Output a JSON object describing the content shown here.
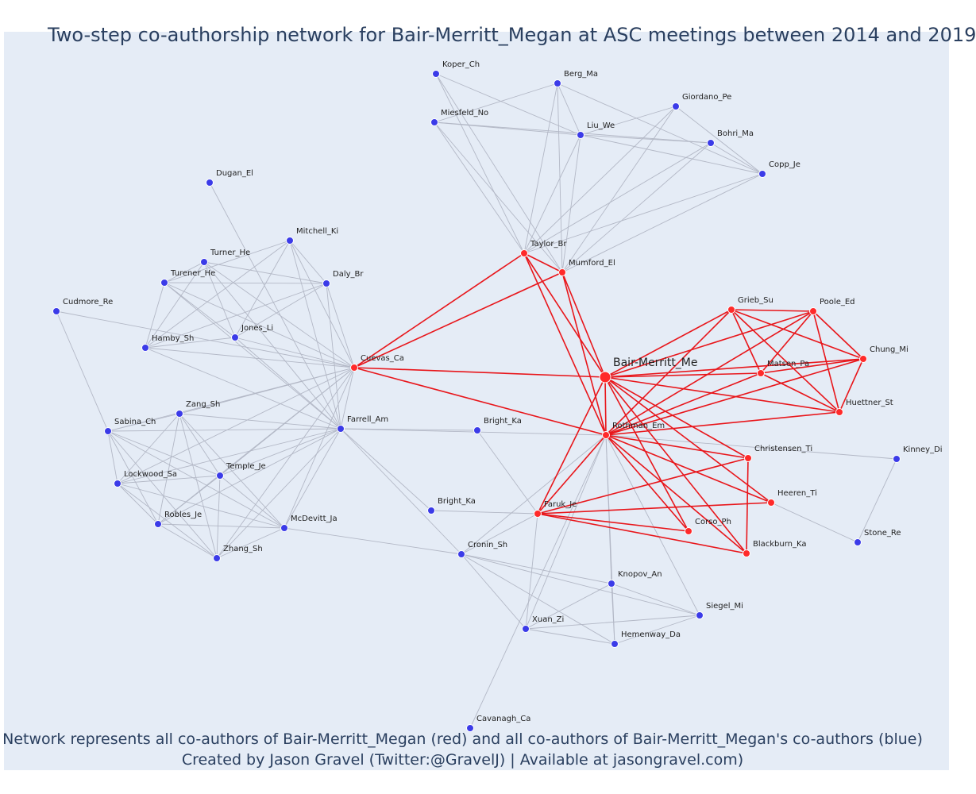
{
  "title": "Two-step co-authorship network for Bair-Merritt_Megan at ASC meetings between 2014 and 2019",
  "caption_line1": "Network represents all co-authors of Bair-Merritt_Megan (red) and all co-authors of Bair-Merritt_Megan's co-authors (blue)",
  "caption_line2": "Created by Jason Gravel (Twitter:@GravelJ) | Available at jasongravel.com)",
  "colors": {
    "background": "#e5ecf6",
    "red_node": "#ff2a2a",
    "blue_node": "#3b3be8",
    "red_edge": "#e8161b",
    "gray_edge": "#b3b8c6"
  },
  "ego": "Bair-Merritt_Me",
  "nodes": [
    {
      "id": "Bair-Merritt_Me",
      "group": "ego"
    },
    {
      "id": "Rothman_Em",
      "group": "red"
    },
    {
      "id": "Taylor_Br",
      "group": "red"
    },
    {
      "id": "Mumford_El",
      "group": "red"
    },
    {
      "id": "Cuevas_Ca",
      "group": "red"
    },
    {
      "id": "Grieb_Su",
      "group": "red"
    },
    {
      "id": "Poole_Ed",
      "group": "red"
    },
    {
      "id": "Chung_Mi",
      "group": "red"
    },
    {
      "id": "Matsen_Pa",
      "group": "red"
    },
    {
      "id": "Huettner_St",
      "group": "red"
    },
    {
      "id": "Christensen_Ti",
      "group": "red"
    },
    {
      "id": "Heeren_Ti",
      "group": "red"
    },
    {
      "id": "Faruk_Je",
      "group": "red"
    },
    {
      "id": "Corso_Ph",
      "group": "red"
    },
    {
      "id": "Blackburn_Ka",
      "group": "red"
    },
    {
      "id": "Koper_Ch",
      "group": "blue"
    },
    {
      "id": "Berg_Ma",
      "group": "blue"
    },
    {
      "id": "Giordano_Pe",
      "group": "blue"
    },
    {
      "id": "Miesfeld_No",
      "group": "blue"
    },
    {
      "id": "Liu_We",
      "group": "blue"
    },
    {
      "id": "Bohri_Ma",
      "group": "blue"
    },
    {
      "id": "Copp_Je",
      "group": "blue"
    },
    {
      "id": "Dugan_El",
      "group": "blue"
    },
    {
      "id": "Mitchell_Ki",
      "group": "blue"
    },
    {
      "id": "Turner_He",
      "group": "blue"
    },
    {
      "id": "Turener_He",
      "group": "blue"
    },
    {
      "id": "Daly_Br",
      "group": "blue"
    },
    {
      "id": "Cudmore_Re",
      "group": "blue"
    },
    {
      "id": "Jones_Li",
      "group": "blue"
    },
    {
      "id": "Hamby_Sh",
      "group": "blue"
    },
    {
      "id": "Zang_Sh",
      "group": "blue"
    },
    {
      "id": "Farrell_Am",
      "group": "blue"
    },
    {
      "id": "Sabina_Ch",
      "group": "blue"
    },
    {
      "id": "Bright_Ka_1",
      "label": "Bright_Ka",
      "group": "blue"
    },
    {
      "id": "Temple_Je",
      "group": "blue"
    },
    {
      "id": "Lockwood_Sa",
      "group": "blue"
    },
    {
      "id": "Bright_Ka_2",
      "label": "Bright_Ka",
      "group": "blue"
    },
    {
      "id": "Robles_Je",
      "group": "blue"
    },
    {
      "id": "McDevitt_Ja",
      "group": "blue"
    },
    {
      "id": "Zhang_Sh",
      "group": "blue"
    },
    {
      "id": "Cronin_Sh",
      "group": "blue"
    },
    {
      "id": "Kinney_Di",
      "group": "blue"
    },
    {
      "id": "Stone_Re",
      "group": "blue"
    },
    {
      "id": "Knopov_An",
      "group": "blue"
    },
    {
      "id": "Siegel_Mi",
      "group": "blue"
    },
    {
      "id": "Xuan_Zi",
      "group": "blue"
    },
    {
      "id": "Hemenway_Da",
      "group": "blue"
    },
    {
      "id": "Cavanagh_Ca",
      "group": "blue"
    }
  ],
  "red_edges": [
    [
      "Bair-Merritt_Me",
      "Rothman_Em"
    ],
    [
      "Bair-Merritt_Me",
      "Taylor_Br"
    ],
    [
      "Bair-Merritt_Me",
      "Mumford_El"
    ],
    [
      "Bair-Merritt_Me",
      "Cuevas_Ca"
    ],
    [
      "Bair-Merritt_Me",
      "Grieb_Su"
    ],
    [
      "Bair-Merritt_Me",
      "Poole_Ed"
    ],
    [
      "Bair-Merritt_Me",
      "Chung_Mi"
    ],
    [
      "Bair-Merritt_Me",
      "Matsen_Pa"
    ],
    [
      "Bair-Merritt_Me",
      "Huettner_St"
    ],
    [
      "Bair-Merritt_Me",
      "Christensen_Ti"
    ],
    [
      "Bair-Merritt_Me",
      "Heeren_Ti"
    ],
    [
      "Bair-Merritt_Me",
      "Faruk_Je"
    ],
    [
      "Bair-Merritt_Me",
      "Corso_Ph"
    ],
    [
      "Bair-Merritt_Me",
      "Blackburn_Ka"
    ],
    [
      "Rothman_Em",
      "Taylor_Br"
    ],
    [
      "Rothman_Em",
      "Mumford_El"
    ],
    [
      "Rothman_Em",
      "Cuevas_Ca"
    ],
    [
      "Rothman_Em",
      "Grieb_Su"
    ],
    [
      "Rothman_Em",
      "Poole_Ed"
    ],
    [
      "Rothman_Em",
      "Chung_Mi"
    ],
    [
      "Rothman_Em",
      "Matsen_Pa"
    ],
    [
      "Rothman_Em",
      "Huettner_St"
    ],
    [
      "Rothman_Em",
      "Christensen_Ti"
    ],
    [
      "Rothman_Em",
      "Heeren_Ti"
    ],
    [
      "Rothman_Em",
      "Faruk_Je"
    ],
    [
      "Rothman_Em",
      "Corso_Ph"
    ],
    [
      "Rothman_Em",
      "Blackburn_Ka"
    ],
    [
      "Taylor_Br",
      "Mumford_El"
    ],
    [
      "Taylor_Br",
      "Cuevas_Ca"
    ],
    [
      "Mumford_El",
      "Cuevas_Ca"
    ],
    [
      "Grieb_Su",
      "Poole_Ed"
    ],
    [
      "Grieb_Su",
      "Chung_Mi"
    ],
    [
      "Grieb_Su",
      "Matsen_Pa"
    ],
    [
      "Grieb_Su",
      "Huettner_St"
    ],
    [
      "Poole_Ed",
      "Chung_Mi"
    ],
    [
      "Poole_Ed",
      "Matsen_Pa"
    ],
    [
      "Poole_Ed",
      "Huettner_St"
    ],
    [
      "Chung_Mi",
      "Matsen_Pa"
    ],
    [
      "Chung_Mi",
      "Huettner_St"
    ],
    [
      "Matsen_Pa",
      "Huettner_St"
    ],
    [
      "Faruk_Je",
      "Christensen_Ti"
    ],
    [
      "Faruk_Je",
      "Heeren_Ti"
    ],
    [
      "Faruk_Je",
      "Corso_Ph"
    ],
    [
      "Faruk_Je",
      "Blackburn_Ka"
    ],
    [
      "Christensen_Ti",
      "Blackburn_Ka"
    ]
  ],
  "gray_edges": [
    [
      "Taylor_Br",
      "Koper_Ch"
    ],
    [
      "Taylor_Br",
      "Berg_Ma"
    ],
    [
      "Taylor_Br",
      "Miesfeld_No"
    ],
    [
      "Taylor_Br",
      "Liu_We"
    ],
    [
      "Taylor_Br",
      "Giordano_Pe"
    ],
    [
      "Taylor_Br",
      "Bohri_Ma"
    ],
    [
      "Taylor_Br",
      "Copp_Je"
    ],
    [
      "Mumford_El",
      "Koper_Ch"
    ],
    [
      "Mumford_El",
      "Berg_Ma"
    ],
    [
      "Mumford_El",
      "Miesfeld_No"
    ],
    [
      "Mumford_El",
      "Liu_We"
    ],
    [
      "Mumford_El",
      "Giordano_Pe"
    ],
    [
      "Mumford_El",
      "Bohri_Ma"
    ],
    [
      "Mumford_El",
      "Copp_Je"
    ],
    [
      "Koper_Ch",
      "Liu_We"
    ],
    [
      "Miesfeld_No",
      "Berg_Ma"
    ],
    [
      "Miesfeld_No",
      "Liu_We"
    ],
    [
      "Miesfeld_No",
      "Bohri_Ma"
    ],
    [
      "Berg_Ma",
      "Liu_We"
    ],
    [
      "Berg_Ma",
      "Copp_Je"
    ],
    [
      "Giordano_Pe",
      "Liu_We"
    ],
    [
      "Giordano_Pe",
      "Copp_Je"
    ],
    [
      "Liu_We",
      "Bohri_Ma"
    ],
    [
      "Liu_We",
      "Copp_Je"
    ],
    [
      "Bohri_Ma",
      "Copp_Je"
    ],
    [
      "Cuevas_Ca",
      "Mitchell_Ki"
    ],
    [
      "Cuevas_Ca",
      "Turner_He"
    ],
    [
      "Cuevas_Ca",
      "Turener_He"
    ],
    [
      "Cuevas_Ca",
      "Daly_Br"
    ],
    [
      "Cuevas_Ca",
      "Jones_Li"
    ],
    [
      "Cuevas_Ca",
      "Hamby_Sh"
    ],
    [
      "Cuevas_Ca",
      "Cudmore_Re"
    ],
    [
      "Cuevas_Ca",
      "Zang_Sh"
    ],
    [
      "Cuevas_Ca",
      "Sabina_Ch"
    ],
    [
      "Cuevas_Ca",
      "Temple_Je"
    ],
    [
      "Cuevas_Ca",
      "Lockwood_Sa"
    ],
    [
      "Cuevas_Ca",
      "Robles_Je"
    ],
    [
      "Cuevas_Ca",
      "McDevitt_Ja"
    ],
    [
      "Cuevas_Ca",
      "Zhang_Sh"
    ],
    [
      "Cuevas_Ca",
      "Farrell_Am"
    ],
    [
      "Farrell_Am",
      "Dugan_El"
    ],
    [
      "Farrell_Am",
      "Mitchell_Ki"
    ],
    [
      "Farrell_Am",
      "Turner_He"
    ],
    [
      "Farrell_Am",
      "Turener_He"
    ],
    [
      "Farrell_Am",
      "Daly_Br"
    ],
    [
      "Farrell_Am",
      "Jones_Li"
    ],
    [
      "Farrell_Am",
      "Hamby_Sh"
    ],
    [
      "Farrell_Am",
      "Zang_Sh"
    ],
    [
      "Farrell_Am",
      "Sabina_Ch"
    ],
    [
      "Farrell_Am",
      "Temple_Je"
    ],
    [
      "Farrell_Am",
      "Lockwood_Sa"
    ],
    [
      "Farrell_Am",
      "Robles_Je"
    ],
    [
      "Farrell_Am",
      "McDevitt_Ja"
    ],
    [
      "Farrell_Am",
      "Zhang_Sh"
    ],
    [
      "Farrell_Am",
      "Bright_Ka_1"
    ],
    [
      "Farrell_Am",
      "Bright_Ka_2"
    ],
    [
      "Farrell_Am",
      "Rothman_Em"
    ],
    [
      "Farrell_Am",
      "Cronin_Sh"
    ],
    [
      "Mitchell_Ki",
      "Turener_He"
    ],
    [
      "Mitchell_Ki",
      "Hamby_Sh"
    ],
    [
      "Mitchell_Ki",
      "Jones_Li"
    ],
    [
      "Mitchell_Ki",
      "Daly_Br"
    ],
    [
      "Turner_He",
      "Jones_Li"
    ],
    [
      "Turner_He",
      "Daly_Br"
    ],
    [
      "Turner_He",
      "Hamby_Sh"
    ],
    [
      "Turner_He",
      "Turener_He"
    ],
    [
      "Turener_He",
      "Daly_Br"
    ],
    [
      "Turener_He",
      "Jones_Li"
    ],
    [
      "Turener_He",
      "Hamby_Sh"
    ],
    [
      "Daly_Br",
      "Jones_Li"
    ],
    [
      "Daly_Br",
      "Hamby_Sh"
    ],
    [
      "Jones_Li",
      "Hamby_Sh"
    ],
    [
      "Cudmore_Re",
      "Sabina_Ch"
    ],
    [
      "Zang_Sh",
      "Sabina_Ch"
    ],
    [
      "Zang_Sh",
      "Lockwood_Sa"
    ],
    [
      "Zang_Sh",
      "Temple_Je"
    ],
    [
      "Zang_Sh",
      "Robles_Je"
    ],
    [
      "Zang_Sh",
      "McDevitt_Ja"
    ],
    [
      "Zang_Sh",
      "Zhang_Sh"
    ],
    [
      "Sabina_Ch",
      "Lockwood_Sa"
    ],
    [
      "Sabina_Ch",
      "Temple_Je"
    ],
    [
      "Sabina_Ch",
      "Robles_Je"
    ],
    [
      "Sabina_Ch",
      "McDevitt_Ja"
    ],
    [
      "Sabina_Ch",
      "Zhang_Sh"
    ],
    [
      "Temple_Je",
      "Lockwood_Sa"
    ],
    [
      "Temple_Je",
      "Robles_Je"
    ],
    [
      "Temple_Je",
      "McDevitt_Ja"
    ],
    [
      "Temple_Je",
      "Zhang_Sh"
    ],
    [
      "Lockwood_Sa",
      "Robles_Je"
    ],
    [
      "Lockwood_Sa",
      "McDevitt_Ja"
    ],
    [
      "Lockwood_Sa",
      "Zhang_Sh"
    ],
    [
      "Robles_Je",
      "McDevitt_Ja"
    ],
    [
      "Robles_Je",
      "Zhang_Sh"
    ],
    [
      "McDevitt_Ja",
      "Zhang_Sh"
    ],
    [
      "McDevitt_Ja",
      "Cronin_Sh"
    ],
    [
      "Bright_Ka_1",
      "Faruk_Je"
    ],
    [
      "Bright_Ka_2",
      "Faruk_Je"
    ],
    [
      "Rothman_Em",
      "Knopov_An"
    ],
    [
      "Rothman_Em",
      "Hemenway_Da"
    ],
    [
      "Rothman_Em",
      "Siegel_Mi"
    ],
    [
      "Rothman_Em",
      "Xuan_Zi"
    ],
    [
      "Rothman_Em",
      "Cavanagh_Ca"
    ],
    [
      "Rothman_Em",
      "Cronin_Sh"
    ],
    [
      "Rothman_Em",
      "Kinney_Di"
    ],
    [
      "Heeren_Ti",
      "Stone_Re"
    ],
    [
      "Kinney_Di",
      "Stone_Re"
    ],
    [
      "Cronin_Sh",
      "Knopov_An"
    ],
    [
      "Cronin_Sh",
      "Siegel_Mi"
    ],
    [
      "Cronin_Sh",
      "Xuan_Zi"
    ],
    [
      "Cronin_Sh",
      "Hemenway_Da"
    ],
    [
      "Knopov_An",
      "Hemenway_Da"
    ],
    [
      "Knopov_An",
      "Xuan_Zi"
    ],
    [
      "Knopov_An",
      "Siegel_Mi"
    ],
    [
      "Xuan_Zi",
      "Siegel_Mi"
    ],
    [
      "Xuan_Zi",
      "Hemenway_Da"
    ],
    [
      "Siegel_Mi",
      "Hemenway_Da"
    ],
    [
      "Faruk_Je",
      "Xuan_Zi"
    ],
    [
      "Faruk_Je",
      "Cronin_Sh"
    ]
  ]
}
